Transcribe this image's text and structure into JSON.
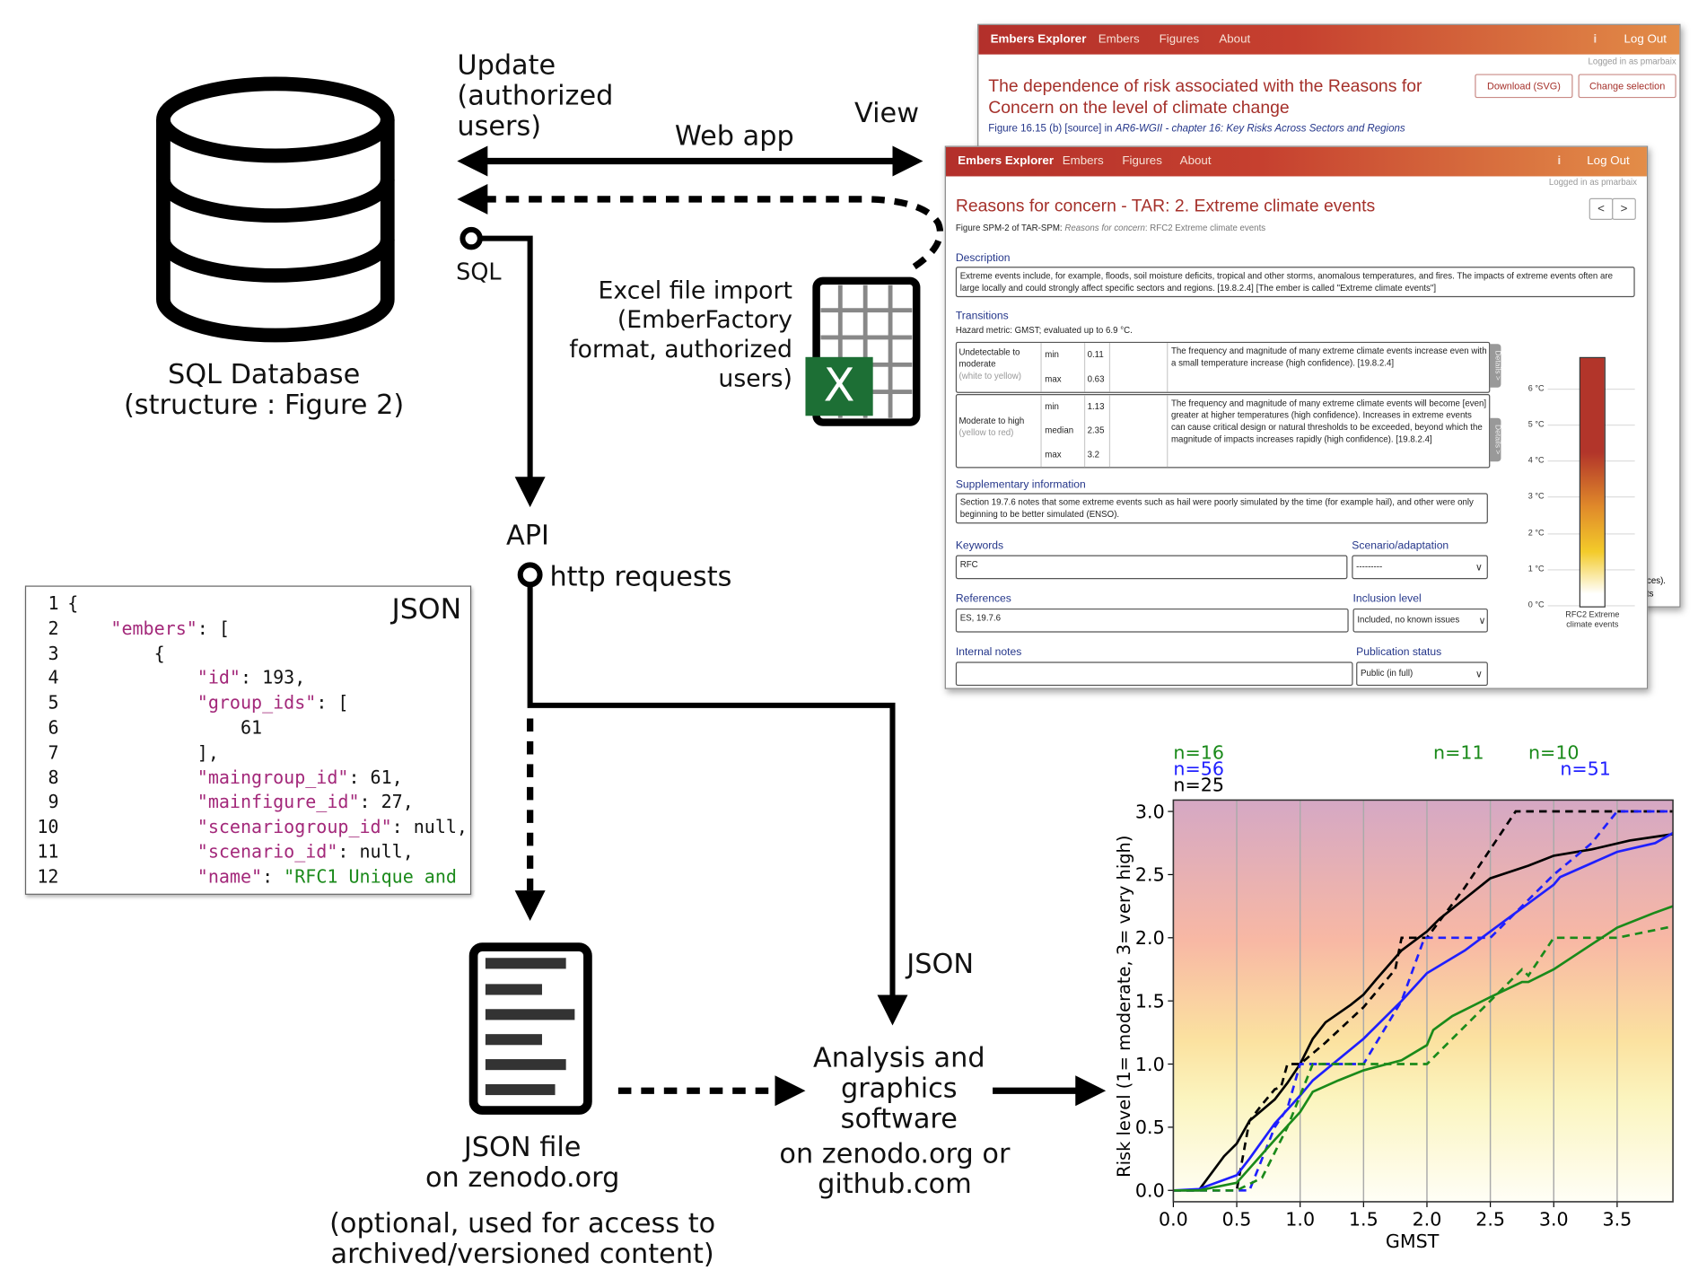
{
  "diagram": {
    "database_label_1": "SQL Database",
    "database_label_2": "(structure : Figure 2)",
    "update_label_1": "Update",
    "update_label_2": "(authorized",
    "update_label_3": "users)",
    "webapp_label": "Web app",
    "view_label": "View",
    "sql_label": "SQL",
    "excel_label_1": "Excel file import",
    "excel_label_2": "(EmberFactory",
    "excel_label_3": "format, authorized",
    "excel_label_4": "users)",
    "api_label": "API",
    "http_label": "http requests",
    "json_arrow_label": "JSON",
    "json_file_label_1": "JSON file",
    "json_file_label_2": "on zenodo.org",
    "json_file_note_1": "(optional, used for access to",
    "json_file_note_2": "archived/versioned content)",
    "analysis_label_1": "Analysis and",
    "analysis_label_2": "graphics",
    "analysis_label_3": "software",
    "analysis_where_1": "on zenodo.org or",
    "analysis_where_2": "github.com",
    "excel_icon_letter": "X"
  },
  "code_panel": {
    "title": "JSON",
    "lines": [
      {
        "n": "1",
        "parts": [
          [
            "p",
            "{"
          ]
        ]
      },
      {
        "n": "2",
        "parts": [
          [
            "p",
            "    "
          ],
          [
            "k",
            "\"embers\""
          ],
          [
            "p",
            ": ["
          ]
        ]
      },
      {
        "n": "3",
        "parts": [
          [
            "p",
            "        {"
          ]
        ]
      },
      {
        "n": "4",
        "parts": [
          [
            "p",
            "            "
          ],
          [
            "k",
            "\"id\""
          ],
          [
            "p",
            ": 193,"
          ]
        ]
      },
      {
        "n": "5",
        "parts": [
          [
            "p",
            "            "
          ],
          [
            "k",
            "\"group_ids\""
          ],
          [
            "p",
            ": ["
          ]
        ]
      },
      {
        "n": "6",
        "parts": [
          [
            "p",
            "                61"
          ]
        ]
      },
      {
        "n": "7",
        "parts": [
          [
            "p",
            "            ],"
          ]
        ]
      },
      {
        "n": "8",
        "parts": [
          [
            "p",
            "            "
          ],
          [
            "k",
            "\"maingroup_id\""
          ],
          [
            "p",
            ": 61,"
          ]
        ]
      },
      {
        "n": "9",
        "parts": [
          [
            "p",
            "            "
          ],
          [
            "k",
            "\"mainfigure_id\""
          ],
          [
            "p",
            ": 27,"
          ]
        ]
      },
      {
        "n": "10",
        "parts": [
          [
            "p",
            "            "
          ],
          [
            "k",
            "\"scenariogroup_id\""
          ],
          [
            "p",
            ": null,"
          ]
        ]
      },
      {
        "n": "11",
        "parts": [
          [
            "p",
            "            "
          ],
          [
            "k",
            "\"scenario_id\""
          ],
          [
            "p",
            ": null,"
          ]
        ]
      },
      {
        "n": "12",
        "parts": [
          [
            "p",
            "            "
          ],
          [
            "k",
            "\"name\""
          ],
          [
            "p",
            ": "
          ],
          [
            "s",
            "\"RFC1 Unique and"
          ]
        ]
      }
    ]
  },
  "back_window": {
    "nav": {
      "brand": "Embers Explorer",
      "embers": "Embers",
      "figures": "Figures",
      "about": "About",
      "info": "i",
      "logout": "Log Out"
    },
    "logged_in": "Logged in as pmarbaix",
    "title_1": "The dependence of risk associated with the Reasons for",
    "title_2": "Concern on the level of climate change",
    "subtitle_prefix": "Figure 16.15 (b) [source] in ",
    "subtitle_source": "AR6-WGII - chapter 16: Key Risks Across Sectors and Regions",
    "download_button": "Download (SVG)",
    "change_button": "Change selection",
    "peek_1": "ces).",
    "peek_2": "ts"
  },
  "front_window": {
    "nav": {
      "brand": "Embers Explorer",
      "embers": "Embers",
      "figures": "Figures",
      "about": "About",
      "info": "i",
      "logout": "Log Out"
    },
    "logged_in": "Logged in as pmarbaix",
    "title": "Reasons for concern - TAR: 2. Extreme climate events",
    "prev": "<",
    "next": ">",
    "figure_ref": "Figure SPM-2 of TAR-SPM: ",
    "figure_ref_italic": "Reasons for concern",
    "figure_ref_rest": ": RFC2 Extreme climate events",
    "description_heading": "Description",
    "description": "Extreme events include, for example, floods, soil moisture deficits, tropical and other storms, anomalous temperatures, and fires. The impacts of extreme events often are large locally and could strongly affect specific sectors and regions. [19.8.2.4] [The ember is called \"Extreme climate events\"]",
    "transitions_heading": "Transitions",
    "hazard_metric": "Hazard metric: GMST; evaluated up to 6.9 °C.",
    "transitions": [
      {
        "name": "Undetectable to moderate",
        "colors": "(white to yellow)",
        "values": [
          [
            "min",
            "0.11"
          ],
          [
            "max",
            "0.63"
          ]
        ],
        "text": "The frequency and magnitude of many extreme climate events increase even with a small temperature increase (high confidence).  [19.8.2.4]",
        "details": "Details >"
      },
      {
        "name": "Moderate to high",
        "colors": "(yellow to red)",
        "values": [
          [
            "min",
            "1.13"
          ],
          [
            "median",
            "2.35"
          ],
          [
            "max",
            "3.2"
          ]
        ],
        "text": "The frequency and magnitude of many extreme climate events will become [even] greater at higher temperatures (high confidence). Increases in extreme events can cause critical design or natural thresholds to be exceeded, beyond which the magnitude of impacts increases rapidly (high confidence).  [19.8.2.4]",
        "details": "Details >"
      }
    ],
    "supplementary_heading": "Supplementary information",
    "supplementary": "Section 19.7.6 notes that some extreme events such as hail were poorly simulated by the time (for example hail), and other were only beginning to be better simulated (ENSO).",
    "keywords_label": "Keywords",
    "keywords_value": "RFC",
    "scenario_label": "Scenario/adaptation",
    "scenario_value": "---------",
    "references_label": "References",
    "references_value": "ES, 19.7.6",
    "inclusion_label": "Inclusion level",
    "inclusion_value": "Included, no known issues",
    "notes_label": "Internal notes",
    "notes_value": "",
    "publication_label": "Publication status",
    "publication_value": "Public (in full)",
    "ember_ticks": [
      "6 °C",
      "5 °C",
      "4 °C",
      "3 °C",
      "2 °C",
      "1 °C",
      "0 °C"
    ],
    "ember_label_1": "RFC2 Extreme",
    "ember_label_2": "climate events",
    "ember_colors": {
      "top": "#b2352a",
      "mid": "#e08a2a",
      "yellow": "#f3cb2a",
      "bottom": "#ffffff"
    }
  },
  "chart_data": {
    "type": "line",
    "xlabel": "GMST",
    "ylabel": "Risk level (1= moderate, 3= very high)",
    "xlim": [
      0,
      3.94
    ],
    "ylim": [
      -0.09,
      3.09
    ],
    "xticks": [
      "0.0",
      "0.5",
      "1.0",
      "1.5",
      "2.0",
      "2.5",
      "3.0",
      "3.5"
    ],
    "yticks": [
      "0.0",
      "0.5",
      "1.0",
      "1.5",
      "2.0",
      "2.5",
      "3.0"
    ],
    "grid": "vertical",
    "background_gradient": {
      "top": "#d5a8c4",
      "upper_mid": "#f8b8a4",
      "mid": "#fbe2a0",
      "lower": "#fbf5c0",
      "bottom": "#fffef6"
    },
    "series": [
      {
        "color": "#000000",
        "dash": false,
        "x": [
          0,
          0.2,
          0.4,
          0.5,
          0.6,
          0.8,
          0.9,
          1.0,
          1.1,
          1.2,
          1.4,
          1.5,
          1.6,
          1.8,
          2.0,
          2.1,
          2.5,
          2.8,
          3.0,
          3.3,
          3.6,
          3.94
        ],
        "y": [
          0,
          0,
          0.27,
          0.37,
          0.55,
          0.72,
          0.85,
          1.0,
          1.2,
          1.33,
          1.47,
          1.55,
          1.67,
          1.9,
          2.05,
          2.15,
          2.47,
          2.57,
          2.65,
          2.7,
          2.77,
          2.82
        ]
      },
      {
        "color": "#000000",
        "dash": true,
        "x": [
          0,
          0.5,
          0.6,
          0.7,
          0.8,
          0.85,
          0.9,
          1.0,
          1.2,
          1.5,
          1.75,
          1.8,
          2.0,
          2.3,
          2.7,
          3.94
        ],
        "y": [
          0,
          0,
          0.55,
          0.68,
          0.8,
          0.82,
          1.0,
          1.0,
          1.17,
          1.45,
          1.75,
          2.0,
          2.0,
          2.4,
          3.0,
          3.0
        ]
      },
      {
        "color": "#1f1fff",
        "dash": false,
        "x": [
          0,
          0.2,
          0.5,
          0.6,
          0.8,
          1.0,
          1.1,
          1.5,
          1.8,
          2.0,
          2.3,
          2.5,
          3.0,
          3.05,
          3.5,
          3.8,
          3.94
        ],
        "y": [
          0,
          0.01,
          0.12,
          0.25,
          0.53,
          0.75,
          0.87,
          1.2,
          1.5,
          1.72,
          1.9,
          2.05,
          2.42,
          2.48,
          2.68,
          2.75,
          2.83
        ]
      },
      {
        "color": "#1f1fff",
        "dash": true,
        "x": [
          0,
          0.6,
          0.8,
          0.9,
          1.0,
          1.5,
          1.8,
          1.98,
          2.5,
          3.0,
          3.3,
          3.5,
          3.94
        ],
        "y": [
          0,
          0,
          0.5,
          0.65,
          1.0,
          1.0,
          1.5,
          2.0,
          2.0,
          2.5,
          2.75,
          3.0,
          3.0
        ]
      },
      {
        "color": "#1a8a1a",
        "dash": false,
        "x": [
          0,
          0.2,
          0.5,
          0.8,
          1.0,
          1.1,
          1.3,
          1.5,
          1.8,
          2.0,
          2.05,
          2.2,
          2.5,
          2.75,
          2.8,
          3.0,
          3.5,
          3.8,
          3.94
        ],
        "y": [
          0,
          0,
          0.06,
          0.4,
          0.62,
          0.78,
          0.87,
          0.95,
          1.03,
          1.15,
          1.27,
          1.38,
          1.53,
          1.65,
          1.65,
          1.75,
          2.08,
          2.2,
          2.25
        ]
      },
      {
        "color": "#1a8a1a",
        "dash": true,
        "x": [
          0,
          0.5,
          0.7,
          0.9,
          1.1,
          2.0,
          2.5,
          2.75,
          2.8,
          3.0,
          3.5,
          3.94
        ],
        "y": [
          0,
          0,
          0.1,
          0.5,
          1.0,
          1.0,
          1.5,
          1.75,
          1.7,
          2.0,
          2.0,
          2.09
        ]
      }
    ],
    "annotations": [
      {
        "text": "n=16",
        "color": "#1a8a1a",
        "x": 0.0,
        "row": 0
      },
      {
        "text": "n=56",
        "color": "#1f1fff",
        "x": 0.0,
        "row": 1
      },
      {
        "text": "n=25",
        "color": "#000000",
        "x": 0.0,
        "row": 2
      },
      {
        "text": "n=11",
        "color": "#1a8a1a",
        "x": 2.05,
        "row": 0
      },
      {
        "text": "n=10",
        "color": "#1a8a1a",
        "x": 2.8,
        "row": 0
      },
      {
        "text": "n=51",
        "color": "#1f1fff",
        "x": 3.05,
        "row": 1
      }
    ]
  }
}
